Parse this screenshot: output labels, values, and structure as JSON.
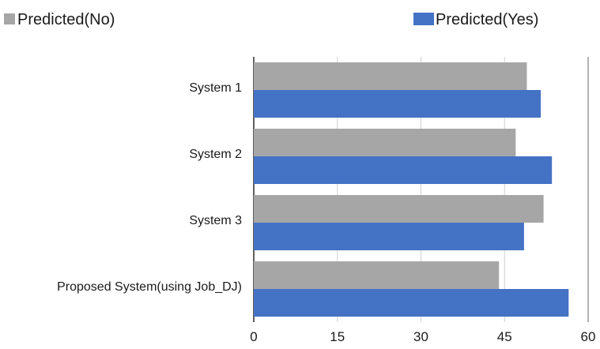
{
  "chart_data": {
    "type": "bar",
    "orientation": "horizontal",
    "title": "",
    "xlabel": "",
    "ylabel": "",
    "categories": [
      "System 1",
      "System 2",
      "System 3",
      "Proposed System(using Job_DJ)"
    ],
    "series": [
      {
        "name": "Predicted(No)",
        "color": "#a6a6a6",
        "values": [
          49,
          47,
          52,
          44
        ]
      },
      {
        "name": "Predicted(Yes)",
        "color": "#4472c4",
        "values": [
          51.5,
          53.5,
          48.5,
          56.5
        ]
      }
    ],
    "xlim": [
      0,
      60
    ],
    "xticks": [
      0,
      15,
      30,
      45,
      60
    ],
    "grid": true,
    "legend_position": "top"
  }
}
